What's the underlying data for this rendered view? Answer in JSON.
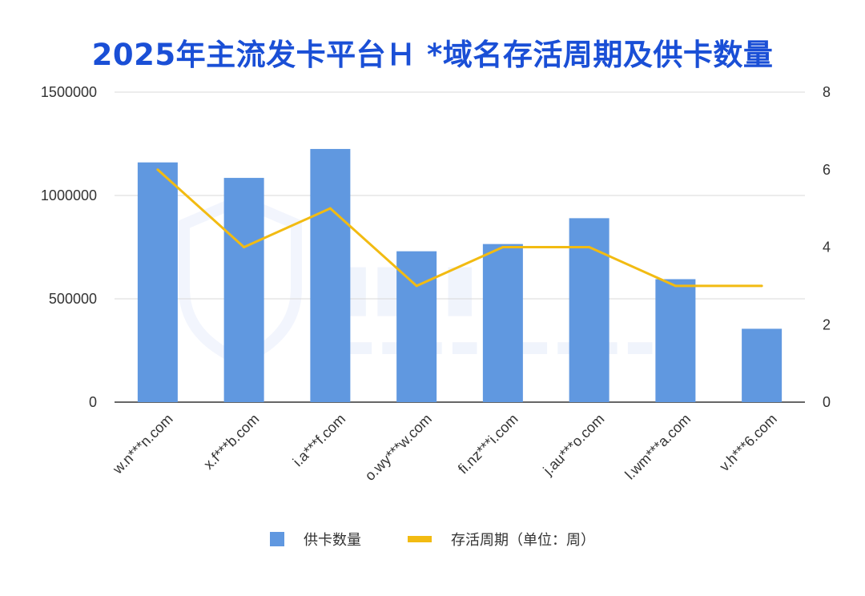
{
  "chart_data": {
    "type": "bar",
    "title": "2025年主流发卡平台Ｈ *域名存活周期及供卡数量",
    "categories": [
      "w.n***n.com",
      "x.f***b.com",
      "i.a***f.com",
      "o.wy***w.com",
      "fi.nz***i.com",
      "j.au***o.com",
      "l.wm***a.com",
      "v.h***6.com"
    ],
    "series": [
      {
        "name": "供卡数量",
        "type": "bar",
        "axis": "left",
        "color": "#6098e0",
        "values": [
          1160000,
          1085000,
          1225000,
          730000,
          765000,
          890000,
          595000,
          355000
        ]
      },
      {
        "name": "存活周期（单位：周）",
        "type": "line",
        "axis": "right",
        "color": "#f2bb12",
        "values": [
          6,
          4,
          5,
          3,
          4,
          4,
          3,
          3
        ]
      }
    ],
    "y_left": {
      "range": [
        0,
        1500000
      ],
      "ticks": [
        0,
        500000,
        1000000,
        1500000
      ]
    },
    "y_right": {
      "range": [
        0,
        8
      ],
      "ticks": [
        0,
        2,
        4,
        6,
        8
      ]
    },
    "grid": true,
    "legend_position": "bottom"
  }
}
